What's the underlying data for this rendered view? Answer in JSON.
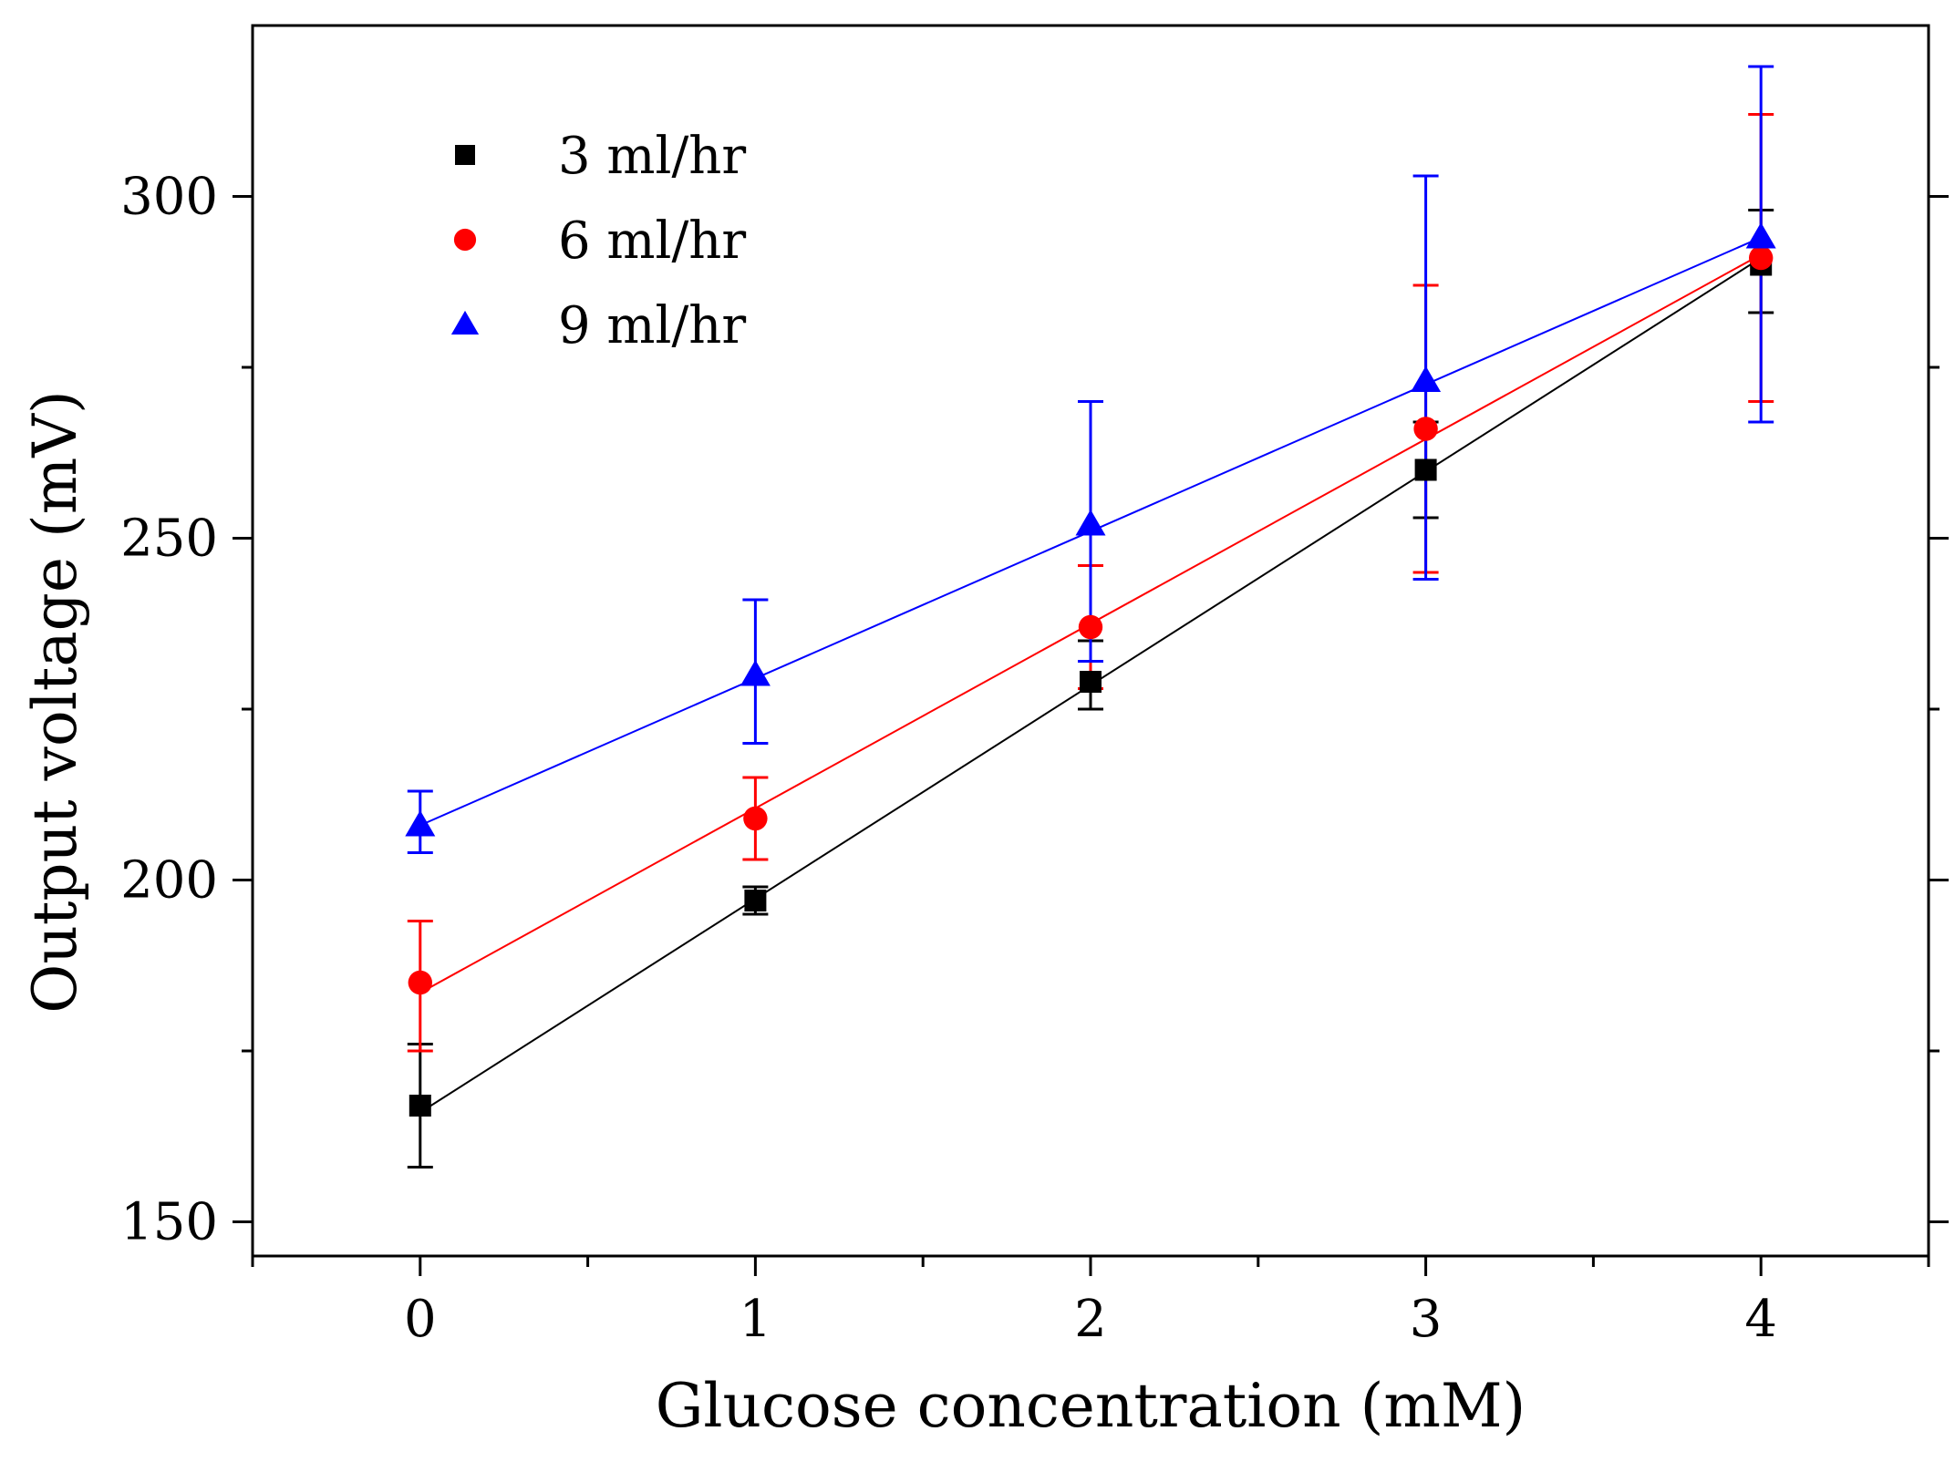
{
  "chart_data": {
    "type": "scatter",
    "title": "",
    "xlabel": "Glucose concentration (mM)",
    "ylabel": "Output voltage (mV)",
    "xlim": [
      -0.5,
      4.5
    ],
    "ylim": [
      145,
      325
    ],
    "x_ticks": [
      0,
      1,
      2,
      3,
      4
    ],
    "x_tick_labels": [
      "0",
      "1",
      "2",
      "3",
      "4"
    ],
    "y_ticks": [
      150,
      200,
      250,
      300
    ],
    "y_tick_labels": [
      "150",
      "200",
      "250",
      "300"
    ],
    "grid": false,
    "legend_position": "top-left",
    "series": [
      {
        "name": "3 ml/hr",
        "color": "#000000",
        "marker": "square",
        "x": [
          0,
          1,
          2,
          3,
          4
        ],
        "y": [
          167,
          197,
          229,
          260,
          290
        ],
        "err_low": [
          158,
          195,
          225,
          253,
          283
        ],
        "err_high": [
          176,
          199,
          235,
          267,
          298
        ],
        "fit_line": [
          [
            0,
            166
          ],
          [
            4,
            291
          ]
        ]
      },
      {
        "name": "6 ml/hr",
        "color": "#ff0000",
        "marker": "circle",
        "x": [
          0,
          1,
          2,
          3,
          4
        ],
        "y": [
          185,
          209,
          237,
          266,
          291
        ],
        "err_low": [
          175,
          203,
          228,
          245,
          270
        ],
        "err_high": [
          194,
          215,
          246,
          287,
          312
        ],
        "fit_line": [
          [
            0,
            183.5
          ],
          [
            4,
            291.5
          ]
        ]
      },
      {
        "name": "9 ml/hr",
        "color": "#0000ff",
        "marker": "triangle",
        "x": [
          0,
          1,
          2,
          3,
          4
        ],
        "y": [
          208,
          230,
          252,
          273,
          294
        ],
        "err_low": [
          204,
          220,
          232,
          244,
          267
        ],
        "err_high": [
          213,
          241,
          270,
          303,
          319
        ],
        "fit_line": [
          [
            0,
            208
          ],
          [
            4,
            294
          ]
        ]
      }
    ]
  }
}
